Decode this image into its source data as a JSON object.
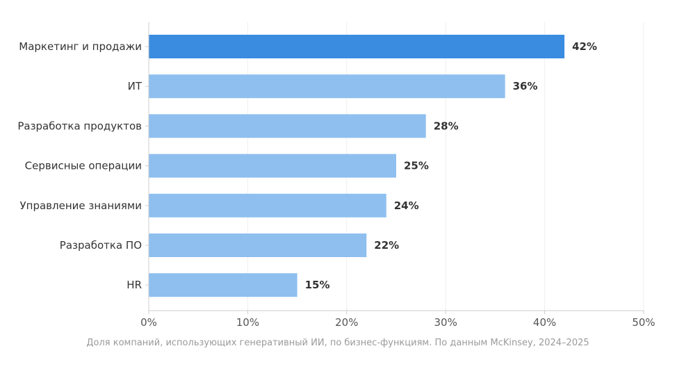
{
  "chart_data": {
    "type": "bar",
    "orientation": "horizontal",
    "categories": [
      "Маркетинг и продажи",
      "ИТ",
      "Разработка продуктов",
      "Сервисные операции",
      "Управление знаниями",
      "Разработка ПО",
      "HR"
    ],
    "values": [
      42,
      36,
      28,
      25,
      24,
      22,
      15
    ],
    "value_labels": [
      "42%",
      "36%",
      "28%",
      "25%",
      "24%",
      "22%",
      "15%"
    ],
    "xlim": [
      0,
      50
    ],
    "x_ticks": [
      0,
      10,
      20,
      30,
      40,
      50
    ],
    "x_tick_labels": [
      "0%",
      "10%",
      "20%",
      "30%",
      "40%",
      "50%"
    ],
    "title": "",
    "xlabel": "",
    "ylabel": "",
    "caption": "Доля компаний, использующих генеративный ИИ, по бизнес-функциям. По данным McKinsey, 2024–2025",
    "grid": "vertical",
    "colors": {
      "highlight": "#3a8ce0",
      "bar": "#8ebfef",
      "grid": "#eeeeee",
      "axis": "#cccccc"
    }
  }
}
